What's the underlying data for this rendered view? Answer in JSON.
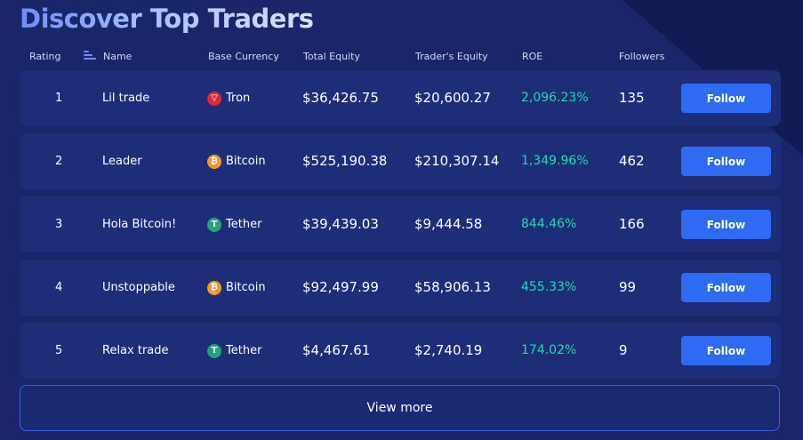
{
  "title": "Discover Top Traders",
  "columns": {
    "rating": "Rating",
    "name": "Name",
    "base_currency": "Base Currency",
    "total_equity": "Total Equity",
    "traders_equity": "Trader's Equity",
    "roe": "ROE",
    "followers": "Followers"
  },
  "rows": [
    {
      "rank": "1",
      "name": "Lil trade",
      "currency": "Tron",
      "coin_icon": "tron-icon",
      "coin_color": "#e0263b",
      "total_equity": "$36,426.75",
      "traders_equity": "$20,600.27",
      "roe": "2,096.23%",
      "followers": "135",
      "follow_label": "Follow"
    },
    {
      "rank": "2",
      "name": "Leader",
      "currency": "Bitcoin",
      "coin_icon": "bitcoin-icon",
      "coin_color": "#f39a25",
      "total_equity": "$525,190.38",
      "traders_equity": "$210,307.14",
      "roe": "1,349.96%",
      "followers": "462",
      "follow_label": "Follow"
    },
    {
      "rank": "3",
      "name": "Hola Bitcoin!",
      "currency": "Tether",
      "coin_icon": "tether-icon",
      "coin_color": "#26a17b",
      "total_equity": "$39,439.03",
      "traders_equity": "$9,444.58",
      "roe": "844.46%",
      "followers": "166",
      "follow_label": "Follow"
    },
    {
      "rank": "4",
      "name": "Unstoppable",
      "currency": "Bitcoin",
      "coin_icon": "bitcoin-icon",
      "coin_color": "#f39a25",
      "total_equity": "$92,497.99",
      "traders_equity": "$58,906.13",
      "roe": "455.33%",
      "followers": "99",
      "follow_label": "Follow"
    },
    {
      "rank": "5",
      "name": "Relax trade",
      "currency": "Tether",
      "coin_icon": "tether-icon",
      "coin_color": "#26a17b",
      "total_equity": "$4,467.61",
      "traders_equity": "$2,740.19",
      "roe": "174.02%",
      "followers": "9",
      "follow_label": "Follow"
    }
  ],
  "view_more_label": "View more",
  "colors": {
    "background": "#19276a",
    "row_background": "#1d2d78",
    "accent_button": "#2f6af3",
    "roe_positive": "#25d9b3"
  }
}
